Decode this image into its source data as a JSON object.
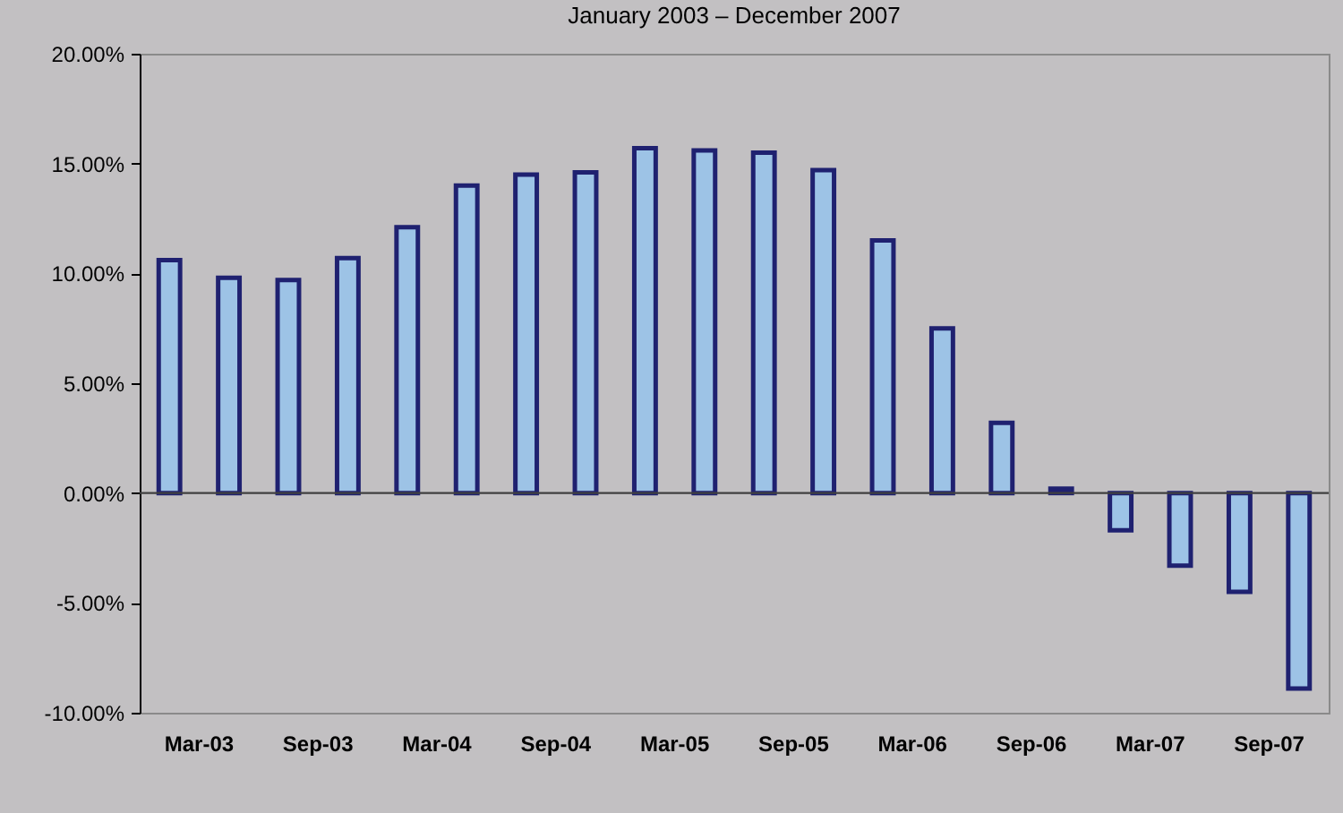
{
  "chart_data": {
    "type": "bar",
    "title": "January 2003 – December 2007",
    "categories": [
      "Mar-03",
      null,
      "Sep-03",
      null,
      "Mar-04",
      null,
      "Sep-04",
      null,
      "Mar-05",
      null,
      "Sep-05",
      null,
      "Mar-06",
      null,
      "Sep-06",
      null,
      "Mar-07",
      null,
      "Sep-07",
      null
    ],
    "values": [
      10.6,
      9.8,
      9.7,
      10.7,
      12.1,
      14.0,
      14.5,
      14.6,
      15.7,
      15.6,
      15.5,
      14.7,
      11.5,
      7.5,
      3.2,
      0.2,
      -1.7,
      -3.3,
      -4.5,
      -8.9
    ],
    "color": "#9dc3e6",
    "ylim": [
      -10,
      20
    ],
    "yticks": [
      {
        "value": -10,
        "label": "-10.00%"
      },
      {
        "value": -5,
        "label": "-5.00%"
      },
      {
        "value": 0,
        "label": "0.00%"
      },
      {
        "value": 5,
        "label": "5.00%"
      },
      {
        "value": 10,
        "label": "10.00%"
      },
      {
        "value": 15,
        "label": "15.00%"
      },
      {
        "value": 20,
        "label": "20.00%"
      }
    ],
    "tick_labels": true
  }
}
